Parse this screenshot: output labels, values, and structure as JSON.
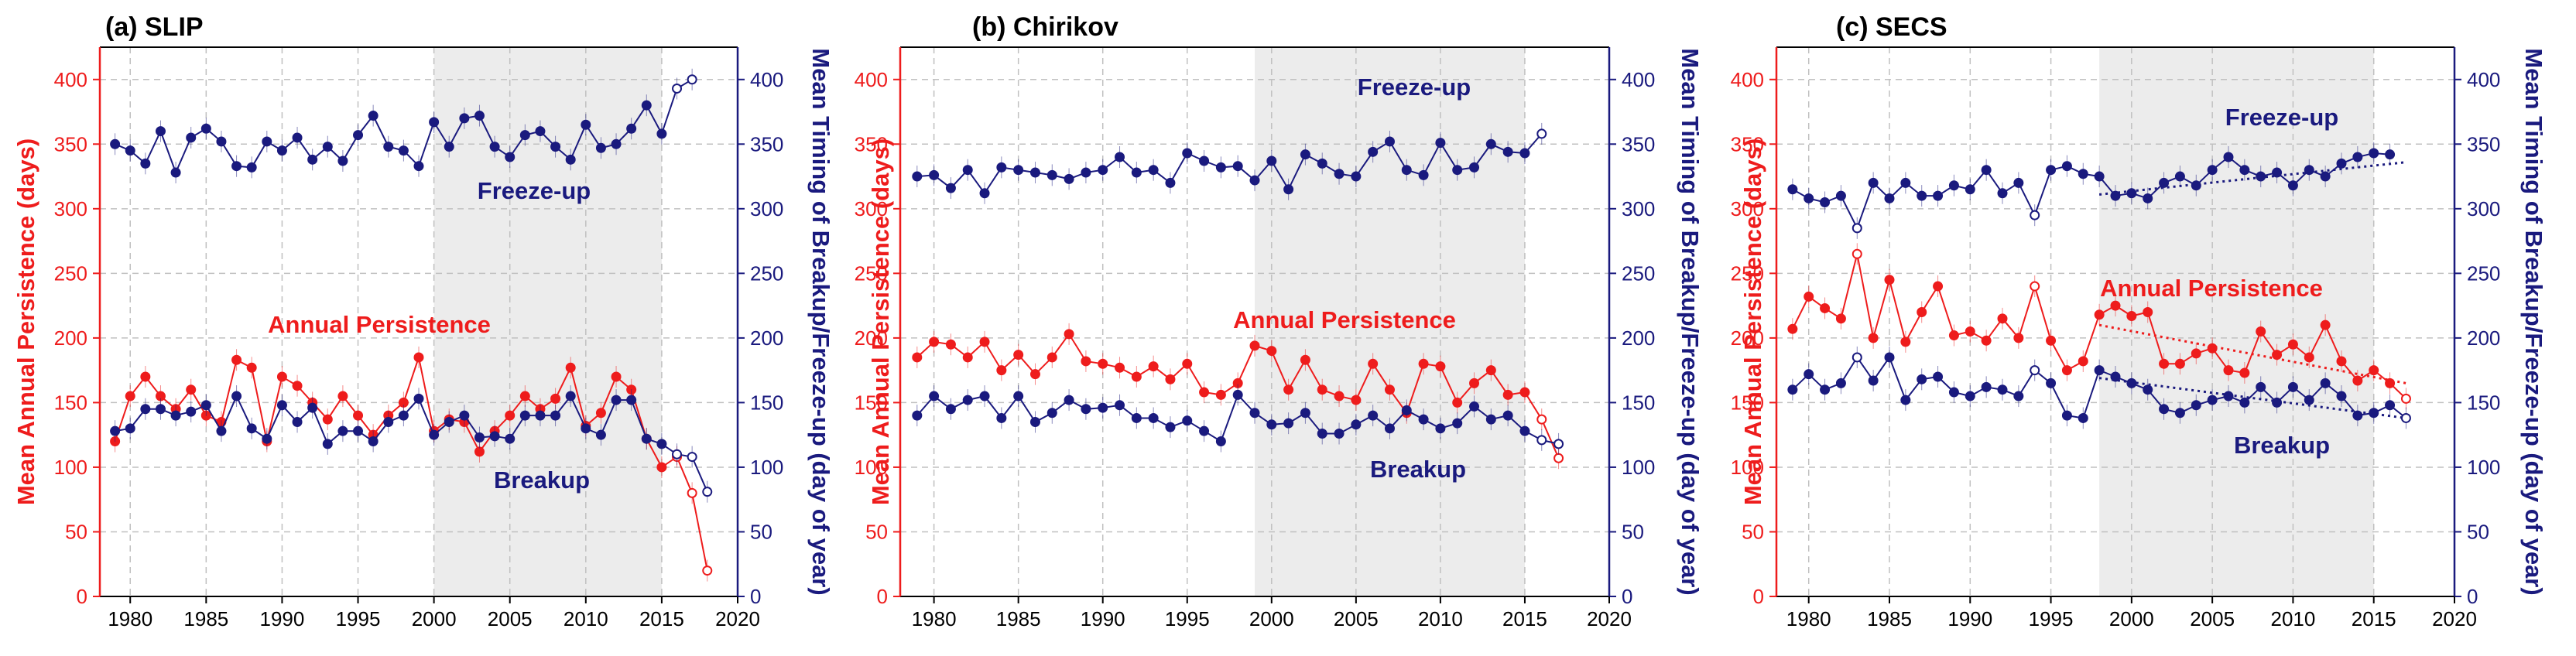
{
  "colors": {
    "persistence": "#ee1c1c",
    "timing": "#1a1a7e",
    "shade": "#ececec",
    "grid": "#c0c0c0",
    "x_axis": "#000000"
  },
  "shared_axes": {
    "left_ylabel": "Mean Annual Persistence (days)",
    "right_ylabel": "Mean Timing of Breakup/Freeze-up (day of year)",
    "x_ticks": [
      "1980",
      "1985",
      "1990",
      "1995",
      "2000",
      "2005",
      "2010",
      "2015",
      "2020"
    ],
    "y_ticks": [
      "0",
      "50",
      "100",
      "150",
      "200",
      "250",
      "300",
      "350",
      "400"
    ]
  },
  "chart_data": [
    {
      "type": "line",
      "title": "(a) SLIP",
      "xlim": [
        1978,
        2020
      ],
      "ylim": [
        0,
        425
      ],
      "y2lim": [
        0,
        425
      ],
      "grid": true,
      "shaded_period": [
        2000,
        2015
      ],
      "annotations": [
        "Freeze-up",
        "Annual Persistence",
        "Breakup"
      ],
      "x": [
        1979,
        1980,
        1981,
        1982,
        1983,
        1984,
        1985,
        1986,
        1987,
        1988,
        1989,
        1990,
        1991,
        1992,
        1993,
        1994,
        1995,
        1996,
        1997,
        1998,
        1999,
        2000,
        2001,
        2002,
        2003,
        2004,
        2005,
        2006,
        2007,
        2008,
        2009,
        2010,
        2011,
        2012,
        2013,
        2014,
        2015,
        2016,
        2017,
        2018
      ],
      "open_marker_from": 2016,
      "series": [
        {
          "name": "Freeze-up",
          "axis": "right",
          "values": [
            350,
            345,
            335,
            360,
            328,
            355,
            362,
            352,
            333,
            332,
            352,
            345,
            355,
            338,
            348,
            337,
            357,
            372,
            348,
            345,
            333,
            367,
            348,
            370,
            372,
            348,
            340,
            357,
            360,
            348,
            338,
            365,
            347,
            350,
            362,
            380,
            358,
            393,
            400,
            null
          ]
        },
        {
          "name": "Annual Persistence",
          "axis": "left",
          "values": [
            120,
            155,
            170,
            155,
            145,
            160,
            140,
            135,
            183,
            177,
            120,
            170,
            163,
            150,
            137,
            155,
            140,
            125,
            140,
            150,
            185,
            128,
            137,
            135,
            112,
            128,
            140,
            155,
            145,
            153,
            177,
            132,
            142,
            170,
            160,
            122,
            100,
            108,
            80,
            20
          ]
        },
        {
          "name": "Breakup",
          "axis": "right",
          "values": [
            128,
            130,
            145,
            145,
            140,
            143,
            148,
            128,
            155,
            130,
            122,
            148,
            135,
            146,
            118,
            128,
            128,
            120,
            135,
            140,
            153,
            125,
            135,
            140,
            123,
            124,
            122,
            140,
            140,
            140,
            155,
            130,
            125,
            152,
            152,
            122,
            118,
            110,
            108,
            81
          ]
        }
      ]
    },
    {
      "type": "line",
      "title": "(b) Chirikov",
      "xlim": [
        1978,
        2020
      ],
      "ylim": [
        0,
        425
      ],
      "y2lim": [
        0,
        425
      ],
      "grid": true,
      "shaded_period": [
        1999,
        2015
      ],
      "annotations": [
        "Freeze-up",
        "Annual Persistence",
        "Breakup"
      ],
      "x": [
        1979,
        1980,
        1981,
        1982,
        1983,
        1984,
        1985,
        1986,
        1987,
        1988,
        1989,
        1990,
        1991,
        1992,
        1993,
        1994,
        1995,
        1996,
        1997,
        1998,
        1999,
        2000,
        2001,
        2002,
        2003,
        2004,
        2005,
        2006,
        2007,
        2008,
        2009,
        2010,
        2011,
        2012,
        2013,
        2014,
        2015,
        2016,
        2017
      ],
      "open_marker_from": 2016,
      "series": [
        {
          "name": "Freeze-up",
          "axis": "right",
          "values": [
            325,
            326,
            316,
            330,
            312,
            332,
            330,
            328,
            326,
            323,
            328,
            330,
            340,
            328,
            330,
            320,
            343,
            337,
            332,
            333,
            322,
            337,
            315,
            342,
            335,
            327,
            325,
            344,
            352,
            330,
            326,
            351,
            330,
            332,
            350,
            344,
            343,
            358,
            null
          ]
        },
        {
          "name": "Annual Persistence",
          "axis": "left",
          "values": [
            185,
            197,
            195,
            185,
            197,
            175,
            187,
            172,
            185,
            203,
            182,
            180,
            177,
            170,
            178,
            168,
            180,
            158,
            156,
            165,
            194,
            190,
            160,
            183,
            160,
            155,
            152,
            180,
            160,
            142,
            180,
            178,
            150,
            165,
            175,
            156,
            158,
            137,
            107
          ]
        },
        {
          "name": "Breakup",
          "axis": "right",
          "values": [
            140,
            155,
            145,
            152,
            155,
            138,
            155,
            135,
            142,
            152,
            145,
            146,
            148,
            138,
            138,
            131,
            136,
            128,
            120,
            156,
            142,
            133,
            134,
            142,
            126,
            126,
            133,
            140,
            130,
            144,
            137,
            130,
            134,
            147,
            137,
            140,
            128,
            121,
            118
          ]
        }
      ]
    },
    {
      "type": "line",
      "title": "(c) SECS",
      "xlim": [
        1978,
        2020
      ],
      "ylim": [
        0,
        425
      ],
      "y2lim": [
        0,
        425
      ],
      "grid": true,
      "shaded_period": [
        1998,
        2015
      ],
      "annotations": [
        "Freeze-up",
        "Annual Persistence",
        "Breakup"
      ],
      "x": [
        1979,
        1980,
        1981,
        1982,
        1983,
        1984,
        1985,
        1986,
        1987,
        1988,
        1989,
        1990,
        1991,
        1992,
        1993,
        1994,
        1995,
        1996,
        1997,
        1998,
        1999,
        2000,
        2001,
        2002,
        2003,
        2004,
        2005,
        2006,
        2007,
        2008,
        2009,
        2010,
        2011,
        2012,
        2013,
        2014,
        2015,
        2016,
        2017
      ],
      "open_marker_years": [
        1983,
        1994,
        2017
      ],
      "series": [
        {
          "name": "Freeze-up",
          "axis": "right",
          "values": [
            315,
            308,
            305,
            310,
            285,
            320,
            308,
            320,
            310,
            310,
            318,
            315,
            330,
            312,
            320,
            295,
            330,
            333,
            327,
            325,
            310,
            312,
            308,
            320,
            325,
            318,
            330,
            340,
            330,
            325,
            328,
            318,
            330,
            325,
            335,
            340,
            343,
            342,
            null
          ]
        },
        {
          "name": "Annual Persistence",
          "axis": "left",
          "values": [
            207,
            232,
            223,
            215,
            265,
            200,
            245,
            197,
            220,
            240,
            202,
            205,
            198,
            215,
            200,
            240,
            198,
            175,
            182,
            218,
            225,
            217,
            220,
            180,
            180,
            188,
            192,
            175,
            173,
            205,
            187,
            195,
            185,
            210,
            182,
            167,
            175,
            165,
            153
          ]
        },
        {
          "name": "Breakup",
          "axis": "right",
          "values": [
            160,
            172,
            160,
            165,
            185,
            167,
            185,
            152,
            168,
            170,
            158,
            155,
            162,
            160,
            155,
            175,
            165,
            140,
            138,
            175,
            170,
            165,
            160,
            145,
            142,
            148,
            152,
            155,
            150,
            162,
            150,
            162,
            152,
            165,
            155,
            140,
            142,
            148,
            138
          ]
        }
      ],
      "trend_lines": [
        {
          "series": "Freeze-up",
          "from": [
            1998,
            311
          ],
          "to": [
            2017,
            336
          ]
        },
        {
          "series": "Annual Persistence",
          "from": [
            1998,
            210
          ],
          "to": [
            2017,
            165
          ]
        },
        {
          "series": "Breakup",
          "from": [
            1998,
            169
          ],
          "to": [
            2017,
            138
          ]
        }
      ]
    }
  ]
}
